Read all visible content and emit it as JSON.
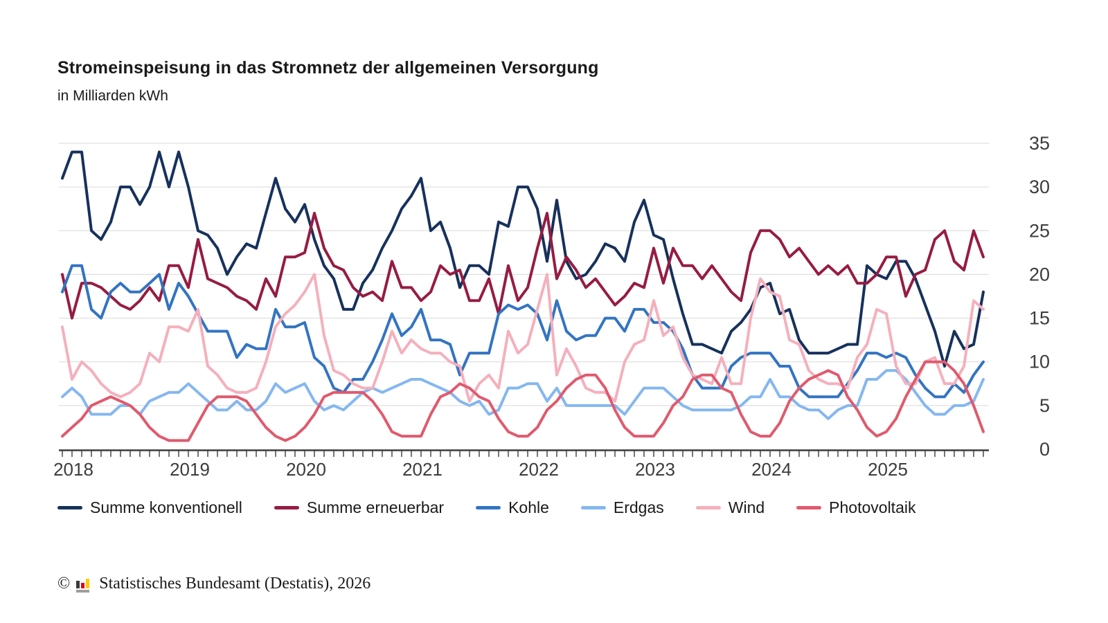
{
  "header": {
    "title": "Stromeinspeisung in das Stromnetz der allgemeinen Versorgung",
    "subtitle": "in Milliarden kWh"
  },
  "footer": {
    "copyright_sign": "©",
    "source": "Statistisches Bundesamt (Destatis), 2026",
    "logo_colors": {
      "bar1": "#3a3a38",
      "bar2": "#e10019",
      "bar3": "#ffcc00",
      "base": "#9d9d9c"
    }
  },
  "axis": {
    "y_tick_labels": [
      "0",
      "5",
      "10",
      "15",
      "20",
      "25",
      "30",
      "35"
    ],
    "x_year_labels": [
      "2018",
      "2019",
      "2020",
      "2021",
      "2022",
      "2023",
      "2024",
      "2025"
    ],
    "grid_color": "#d9d9d9",
    "axis_color": "#3c3c3c",
    "label_color": "#3c3c3c"
  },
  "chart_data": {
    "type": "line",
    "title": "Stromeinspeisung in das Stromnetz der allgemeinen Versorgung",
    "ylabel": "Milliarden kWh",
    "ylim": [
      0,
      35
    ],
    "yticks": [
      0,
      5,
      10,
      15,
      20,
      25,
      30,
      35
    ],
    "x_unit": "month",
    "x_start": "2018-01",
    "x_end": "2025-12",
    "grid": "horizontal",
    "legend_position": "bottom",
    "series": [
      {
        "id": "summe-konventionell",
        "name": "Summe konventionell",
        "color": "#17315c",
        "values": [
          31,
          34,
          34,
          25,
          24,
          26,
          30,
          30,
          28,
          30,
          34,
          30,
          34,
          30,
          25,
          24.5,
          23,
          20,
          22,
          23.5,
          23,
          27,
          31,
          27.5,
          26,
          28,
          24,
          21,
          19.5,
          16,
          16,
          19,
          20.5,
          23,
          25,
          27.5,
          29,
          31,
          25,
          26,
          23,
          18.5,
          21,
          21,
          20,
          26,
          25.5,
          30,
          30,
          27.5,
          21.5,
          28.5,
          21.5,
          19.5,
          20,
          21.5,
          23.5,
          23,
          21.5,
          26,
          28.5,
          24.5,
          24,
          19.5,
          15.5,
          12,
          12,
          11.5,
          11,
          13.5,
          14.5,
          16,
          18.5,
          19,
          15.5,
          16,
          12.5,
          11,
          11,
          11,
          11.5,
          12,
          12,
          21,
          20,
          19.5,
          21.5,
          21.5,
          19.5,
          16.5,
          13.5,
          9.5,
          13.5,
          11.5,
          12,
          18
        ]
      },
      {
        "id": "summe-erneuerbar",
        "name": "Summe erneuerbar",
        "color": "#961c42",
        "values": [
          20,
          15,
          19,
          19,
          18.5,
          17.5,
          16.5,
          16,
          17,
          18.5,
          17,
          21,
          21,
          18.5,
          24,
          19.5,
          19,
          18.5,
          17.5,
          17,
          16,
          19.5,
          17.5,
          22,
          22,
          22.5,
          27,
          23,
          21,
          20.5,
          18.5,
          17.5,
          18,
          17,
          21.5,
          18.5,
          18.5,
          17,
          18,
          21,
          20,
          20.5,
          17,
          17,
          19.5,
          15.5,
          21,
          17,
          18.5,
          23,
          27,
          19.5,
          22,
          20.5,
          18.5,
          19.5,
          18,
          16.5,
          17.5,
          19,
          18.5,
          23,
          19,
          23,
          21,
          21,
          19.5,
          21,
          19.5,
          18,
          17,
          22.5,
          25,
          25,
          24,
          22,
          23,
          21.5,
          20,
          21,
          20,
          21,
          19,
          19,
          20,
          22,
          22,
          17.5,
          20,
          20.5,
          24,
          25,
          21.5,
          20.5,
          25,
          22
        ]
      },
      {
        "id": "kohle",
        "name": "Kohle",
        "color": "#3374c2",
        "values": [
          18,
          21,
          21,
          16,
          15,
          18,
          19,
          18,
          18,
          19,
          20,
          16,
          19,
          17.5,
          15.5,
          13.5,
          13.5,
          13.5,
          10.5,
          12,
          11.5,
          11.5,
          16,
          14,
          14,
          14.5,
          10.5,
          9.5,
          7,
          6.5,
          8,
          8,
          10,
          12.5,
          15.5,
          13,
          14,
          16,
          12.5,
          12.5,
          12,
          8.5,
          11,
          11,
          11,
          15.5,
          16.5,
          16,
          16.5,
          15.5,
          12.5,
          17,
          13.5,
          12.5,
          13,
          13,
          15,
          15,
          13.5,
          16,
          16,
          14.5,
          14.5,
          13.5,
          11.5,
          8.5,
          7,
          7,
          7,
          9.5,
          10.5,
          11,
          11,
          11,
          9.5,
          9.5,
          7,
          6,
          6,
          6,
          6,
          7.5,
          9,
          11,
          11,
          10.5,
          11,
          10.5,
          8.5,
          7,
          6,
          6,
          7.5,
          6.5,
          8.5,
          10
        ]
      },
      {
        "id": "erdgas",
        "name": "Erdgas",
        "color": "#85b7f0",
        "values": [
          6,
          7,
          6,
          4,
          4,
          4,
          5,
          5,
          4,
          5.5,
          6,
          6.5,
          6.5,
          7.5,
          6.5,
          5.5,
          4.5,
          4.5,
          5.5,
          4.5,
          4.5,
          5.5,
          7.5,
          6.5,
          7,
          7.5,
          5.5,
          4.5,
          5,
          4.5,
          5.5,
          6.5,
          7,
          6.5,
          7,
          7.5,
          8,
          8,
          7.5,
          7,
          6.5,
          5.5,
          5,
          5.5,
          4,
          4.5,
          7,
          7,
          7.5,
          7.5,
          5.5,
          7,
          5,
          5,
          5,
          5,
          5,
          5,
          4,
          5.5,
          7,
          7,
          7,
          6,
          5,
          4.5,
          4.5,
          4.5,
          4.5,
          4.5,
          5,
          6,
          6,
          8,
          6,
          6,
          5,
          4.5,
          4.5,
          3.5,
          4.5,
          5,
          5,
          8,
          8,
          9,
          9,
          8,
          6.5,
          5,
          4,
          4,
          5,
          5,
          5.5,
          8
        ]
      },
      {
        "id": "wind",
        "name": "Wind",
        "color": "#f4b0bc",
        "values": [
          14,
          8,
          10,
          9,
          7.5,
          6.5,
          6,
          6.5,
          7.5,
          11,
          10,
          14,
          14,
          13.5,
          16,
          9.5,
          8.5,
          7,
          6.5,
          6.5,
          7,
          10,
          14,
          15.5,
          16.5,
          18,
          20,
          13,
          9,
          8.5,
          7.5,
          7,
          7,
          10,
          13.5,
          11,
          12.5,
          11.5,
          11,
          11,
          10,
          9.5,
          5.5,
          7.5,
          8.5,
          7,
          13.5,
          11,
          12,
          16,
          20,
          8.5,
          11.5,
          9.5,
          7,
          6.5,
          6.5,
          5.5,
          10,
          12,
          12.5,
          17,
          13,
          14,
          10.5,
          8.5,
          8,
          7.5,
          10.5,
          7.5,
          7.5,
          15,
          19.5,
          18,
          17.5,
          12.5,
          12,
          9,
          8,
          7.5,
          7.5,
          7,
          10.5,
          12,
          16,
          15.5,
          9.5,
          7.5,
          7.5,
          10,
          10.5,
          7.5,
          7.5,
          9.5,
          17,
          16
        ]
      },
      {
        "id": "photovoltaik",
        "name": "Photovoltaik",
        "color": "#e05a6d",
        "values": [
          1.5,
          2.5,
          3.5,
          5,
          5.5,
          6,
          5.5,
          5,
          4,
          2.5,
          1.5,
          1,
          1,
          1,
          3,
          5,
          6,
          6,
          6,
          5.5,
          4,
          2.5,
          1.5,
          1,
          1.5,
          2.5,
          4,
          6,
          6.5,
          6.5,
          6.5,
          6.5,
          5.5,
          4,
          2,
          1.5,
          1.5,
          1.5,
          4,
          6,
          6.5,
          7.5,
          7,
          6,
          5.5,
          3.5,
          2,
          1.5,
          1.5,
          2.5,
          4.5,
          5.5,
          7,
          8,
          8.5,
          8.5,
          7,
          4.5,
          2.5,
          1.5,
          1.5,
          1.5,
          3,
          5,
          6,
          8,
          8.5,
          8.5,
          7,
          6.5,
          4,
          2,
          1.5,
          1.5,
          3,
          5.5,
          7,
          8,
          8.5,
          9,
          8.5,
          6,
          4.5,
          2.5,
          1.5,
          2,
          3.5,
          6,
          8,
          10,
          10,
          10,
          9,
          7.5,
          5,
          2
        ]
      }
    ]
  }
}
